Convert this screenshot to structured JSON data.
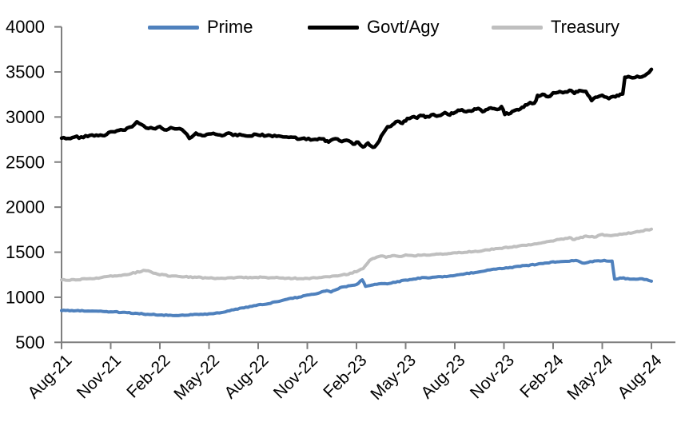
{
  "chart_data": {
    "type": "line",
    "title": "",
    "xlabel": "",
    "ylabel": "",
    "grid": false,
    "legend_position": "top",
    "axis_color": "#7f7f7f",
    "y_axis": {
      "min": 500,
      "max": 4000,
      "step": 500,
      "ticks": [
        4000,
        3500,
        3000,
        2500,
        2000,
        1500,
        1000,
        500
      ]
    },
    "x_axis": {
      "months_span": 36,
      "tick_interval_months": 3,
      "tick_labels": [
        "Aug-21",
        "Nov-21",
        "Feb-22",
        "May-22",
        "Aug-22",
        "Nov-22",
        "Feb-23",
        "May-23",
        "Aug-23",
        "Nov-23",
        "Feb-24",
        "May-24",
        "Aug-24"
      ]
    },
    "series": [
      {
        "name": "Prime",
        "color": "#4f81bd",
        "width": 4,
        "jitter": 5,
        "points": [
          [
            0,
            855
          ],
          [
            1,
            850
          ],
          [
            2,
            845
          ],
          [
            3,
            840
          ],
          [
            4,
            828
          ],
          [
            5,
            815
          ],
          [
            6,
            803
          ],
          [
            7,
            797
          ],
          [
            8,
            805
          ],
          [
            9,
            815
          ],
          [
            10,
            840
          ],
          [
            10.5,
            862
          ],
          [
            11,
            880
          ],
          [
            12,
            912
          ],
          [
            13,
            945
          ],
          [
            14,
            985
          ],
          [
            15,
            1020
          ],
          [
            16,
            1062
          ],
          [
            16.2,
            1075
          ],
          [
            16.45,
            1058
          ],
          [
            17,
            1105
          ],
          [
            18,
            1140
          ],
          [
            18.35,
            1198
          ],
          [
            18.55,
            1122
          ],
          [
            19,
            1140
          ],
          [
            20,
            1155
          ],
          [
            21,
            1190
          ],
          [
            22,
            1215
          ],
          [
            23,
            1225
          ],
          [
            24,
            1240
          ],
          [
            25,
            1270
          ],
          [
            26,
            1300
          ],
          [
            27,
            1320
          ],
          [
            28,
            1345
          ],
          [
            29,
            1365
          ],
          [
            30,
            1390
          ],
          [
            31,
            1402
          ],
          [
            31.4,
            1412
          ],
          [
            31.9,
            1375
          ],
          [
            32.4,
            1398
          ],
          [
            33,
            1408
          ],
          [
            33.6,
            1402
          ],
          [
            33.75,
            1205
          ],
          [
            34.3,
            1212
          ],
          [
            34.8,
            1198
          ],
          [
            35.3,
            1205
          ],
          [
            35.7,
            1195
          ],
          [
            36,
            1178
          ]
        ]
      },
      {
        "name": "Govt/Agy",
        "color": "#000000",
        "width": 4.5,
        "jitter": 11,
        "points": [
          [
            0,
            2775
          ],
          [
            0.4,
            2762
          ],
          [
            0.8,
            2780
          ],
          [
            1.2,
            2770
          ],
          [
            1.6,
            2790
          ],
          [
            2,
            2800
          ],
          [
            2.5,
            2792
          ],
          [
            3,
            2835
          ],
          [
            3.5,
            2845
          ],
          [
            4,
            2872
          ],
          [
            4.3,
            2900
          ],
          [
            4.6,
            2938
          ],
          [
            5,
            2905
          ],
          [
            5.3,
            2875
          ],
          [
            5.6,
            2868
          ],
          [
            6,
            2888
          ],
          [
            6.4,
            2855
          ],
          [
            6.8,
            2880
          ],
          [
            7.2,
            2868
          ],
          [
            7.5,
            2842
          ],
          [
            7.8,
            2760
          ],
          [
            8.2,
            2812
          ],
          [
            8.6,
            2790
          ],
          [
            9,
            2802
          ],
          [
            9.4,
            2818
          ],
          [
            9.8,
            2795
          ],
          [
            10.2,
            2812
          ],
          [
            10.6,
            2800
          ],
          [
            11,
            2806
          ],
          [
            11.5,
            2792
          ],
          [
            12,
            2806
          ],
          [
            12.5,
            2788
          ],
          [
            13,
            2796
          ],
          [
            13.5,
            2774
          ],
          [
            14,
            2786
          ],
          [
            14.4,
            2754
          ],
          [
            14.8,
            2768
          ],
          [
            15.2,
            2745
          ],
          [
            15.6,
            2758
          ],
          [
            16,
            2748
          ],
          [
            16.3,
            2724
          ],
          [
            16.7,
            2762
          ],
          [
            17.1,
            2718
          ],
          [
            17.4,
            2742
          ],
          [
            17.8,
            2700
          ],
          [
            18.1,
            2722
          ],
          [
            18.4,
            2672
          ],
          [
            18.7,
            2702
          ],
          [
            19,
            2660
          ],
          [
            19.3,
            2712
          ],
          [
            19.6,
            2808
          ],
          [
            19.9,
            2892
          ],
          [
            20.2,
            2912
          ],
          [
            20.5,
            2952
          ],
          [
            20.8,
            2928
          ],
          [
            21.1,
            2978
          ],
          [
            21.4,
            3002
          ],
          [
            21.7,
            2988
          ],
          [
            22,
            3022
          ],
          [
            22.3,
            2998
          ],
          [
            22.7,
            3032
          ],
          [
            23,
            3012
          ],
          [
            23.4,
            3048
          ],
          [
            23.7,
            3028
          ],
          [
            24,
            3056
          ],
          [
            24.3,
            3082
          ],
          [
            24.7,
            3058
          ],
          [
            25,
            3072
          ],
          [
            25.3,
            3096
          ],
          [
            25.7,
            3068
          ],
          [
            26,
            3086
          ],
          [
            26.3,
            3102
          ],
          [
            26.6,
            3092
          ],
          [
            26.85,
            3108
          ],
          [
            27.05,
            3032
          ],
          [
            27.4,
            3048
          ],
          [
            27.7,
            3078
          ],
          [
            28,
            3092
          ],
          [
            28.3,
            3132
          ],
          [
            28.6,
            3162
          ],
          [
            28.85,
            3148
          ],
          [
            29.05,
            3232
          ],
          [
            29.35,
            3258
          ],
          [
            29.7,
            3228
          ],
          [
            30,
            3258
          ],
          [
            30.3,
            3282
          ],
          [
            30.6,
            3262
          ],
          [
            31,
            3292
          ],
          [
            31.3,
            3268
          ],
          [
            31.6,
            3298
          ],
          [
            32,
            3282
          ],
          [
            32.35,
            3188
          ],
          [
            32.7,
            3222
          ],
          [
            33,
            3232
          ],
          [
            33.4,
            3212
          ],
          [
            33.8,
            3228
          ],
          [
            34.1,
            3248
          ],
          [
            34.25,
            3255
          ],
          [
            34.38,
            3432
          ],
          [
            34.7,
            3448
          ],
          [
            35,
            3442
          ],
          [
            35.4,
            3452
          ],
          [
            35.7,
            3465
          ],
          [
            36,
            3528
          ]
        ]
      },
      {
        "name": "Treasury",
        "color": "#bfbfbf",
        "width": 4,
        "jitter": 6,
        "points": [
          [
            0,
            1195
          ],
          [
            0.5,
            1192
          ],
          [
            1,
            1196
          ],
          [
            1.5,
            1205
          ],
          [
            2,
            1212
          ],
          [
            2.5,
            1220
          ],
          [
            3,
            1232
          ],
          [
            3.5,
            1242
          ],
          [
            4,
            1256
          ],
          [
            4.5,
            1272
          ],
          [
            5,
            1296
          ],
          [
            5.3,
            1288
          ],
          [
            5.6,
            1272
          ],
          [
            6,
            1252
          ],
          [
            6.5,
            1240
          ],
          [
            7,
            1234
          ],
          [
            7.5,
            1228
          ],
          [
            8,
            1224
          ],
          [
            8.5,
            1218
          ],
          [
            9,
            1214
          ],
          [
            9.5,
            1211
          ],
          [
            10,
            1212
          ],
          [
            10.5,
            1216
          ],
          [
            11,
            1220
          ],
          [
            11.5,
            1218
          ],
          [
            12,
            1222
          ],
          [
            12.5,
            1219
          ],
          [
            13,
            1217
          ],
          [
            13.5,
            1213
          ],
          [
            14,
            1211
          ],
          [
            14.5,
            1209
          ],
          [
            15,
            1210
          ],
          [
            15.5,
            1214
          ],
          [
            16,
            1222
          ],
          [
            16.5,
            1230
          ],
          [
            17,
            1242
          ],
          [
            17.5,
            1258
          ],
          [
            18,
            1285
          ],
          [
            18.4,
            1320
          ],
          [
            18.8,
            1408
          ],
          [
            19.1,
            1438
          ],
          [
            19.5,
            1455
          ],
          [
            19.8,
            1448
          ],
          [
            20.2,
            1462
          ],
          [
            20.6,
            1452
          ],
          [
            21,
            1468
          ],
          [
            21.5,
            1462
          ],
          [
            22,
            1466
          ],
          [
            22.5,
            1472
          ],
          [
            23,
            1478
          ],
          [
            23.5,
            1482
          ],
          [
            24,
            1490
          ],
          [
            24.5,
            1497
          ],
          [
            25,
            1505
          ],
          [
            25.5,
            1515
          ],
          [
            26,
            1525
          ],
          [
            26.5,
            1537
          ],
          [
            27,
            1548
          ],
          [
            27.5,
            1558
          ],
          [
            28,
            1568
          ],
          [
            28.5,
            1580
          ],
          [
            29,
            1592
          ],
          [
            29.5,
            1610
          ],
          [
            30,
            1628
          ],
          [
            30.5,
            1645
          ],
          [
            31,
            1658
          ],
          [
            31.3,
            1642
          ],
          [
            31.7,
            1662
          ],
          [
            32,
            1676
          ],
          [
            32.5,
            1668
          ],
          [
            33,
            1694
          ],
          [
            33.4,
            1680
          ],
          [
            33.8,
            1692
          ],
          [
            34.2,
            1702
          ],
          [
            34.6,
            1710
          ],
          [
            35,
            1722
          ],
          [
            35.5,
            1738
          ],
          [
            36,
            1756
          ]
        ]
      }
    ]
  },
  "layout_colors": {
    "background": "#ffffff",
    "axis": "#7f7f7f",
    "text": "#000000"
  }
}
